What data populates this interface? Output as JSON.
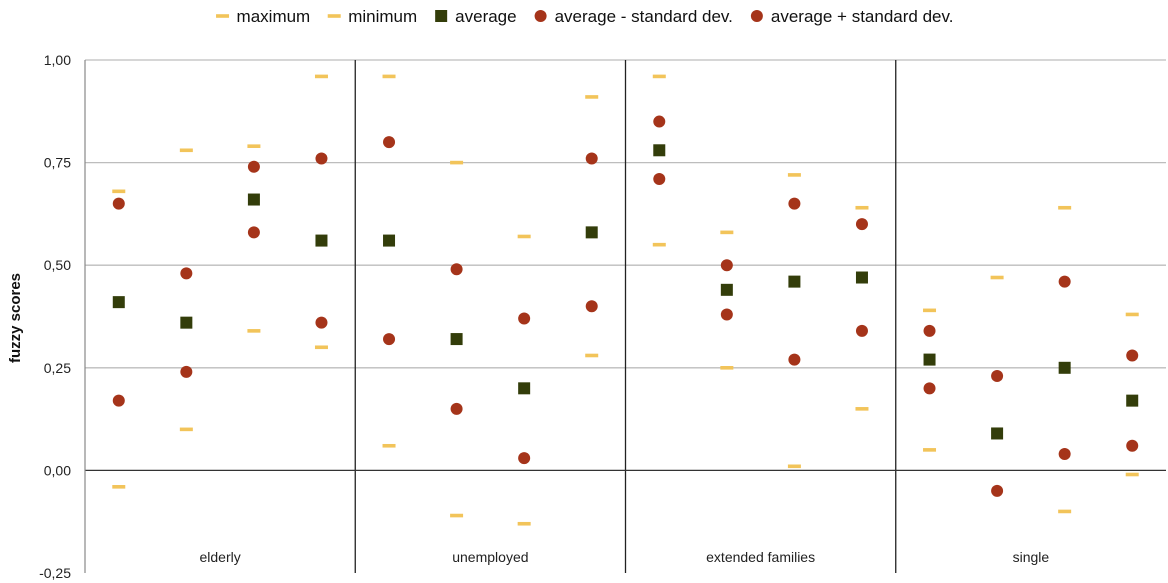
{
  "chart_data": {
    "type": "scatter",
    "ylabel": "fuzzy scores",
    "ylim": [
      -0.25,
      1.0
    ],
    "yticks": [
      -0.25,
      0.0,
      0.25,
      0.5,
      0.75,
      1.0
    ],
    "ytick_labels": [
      "-0,25",
      "0,00",
      "0,25",
      "0,50",
      "0,75",
      "1,00"
    ],
    "grid": true,
    "legend_position": "top",
    "groups": [
      "elderly",
      "unemployed",
      "extended families",
      "single"
    ],
    "items_per_group": 4,
    "series": [
      {
        "name": "maximum",
        "marker": "dash",
        "color": "#F2C45A",
        "values": [
          0.68,
          0.78,
          0.79,
          0.96,
          0.96,
          0.75,
          0.57,
          0.91,
          0.96,
          0.58,
          0.72,
          0.64,
          0.39,
          0.47,
          0.64,
          0.38
        ]
      },
      {
        "name": "minimum",
        "marker": "dash",
        "color": "#F2C45A",
        "values": [
          -0.04,
          0.1,
          0.34,
          0.3,
          0.06,
          -0.11,
          -0.13,
          0.28,
          0.55,
          0.25,
          0.01,
          0.15,
          0.05,
          null,
          -0.1,
          -0.01
        ]
      },
      {
        "name": "average",
        "marker": "square",
        "color": "#333D0A",
        "values": [
          0.41,
          0.36,
          0.66,
          0.56,
          0.56,
          0.32,
          0.2,
          0.58,
          0.78,
          0.44,
          0.46,
          0.47,
          0.27,
          0.09,
          0.25,
          0.17
        ]
      },
      {
        "name": "average - standard dev.",
        "marker": "circle",
        "color": "#A5341A",
        "values": [
          0.17,
          0.24,
          0.58,
          0.36,
          0.32,
          0.15,
          0.03,
          0.4,
          0.71,
          0.38,
          0.27,
          0.34,
          0.2,
          -0.05,
          0.04,
          0.06
        ]
      },
      {
        "name": "average + standard dev.",
        "marker": "circle",
        "color": "#A5341A",
        "values": [
          0.65,
          0.48,
          0.74,
          0.76,
          0.8,
          0.49,
          0.37,
          0.76,
          0.85,
          0.5,
          0.65,
          0.6,
          0.34,
          0.23,
          0.46,
          0.28
        ]
      }
    ]
  }
}
